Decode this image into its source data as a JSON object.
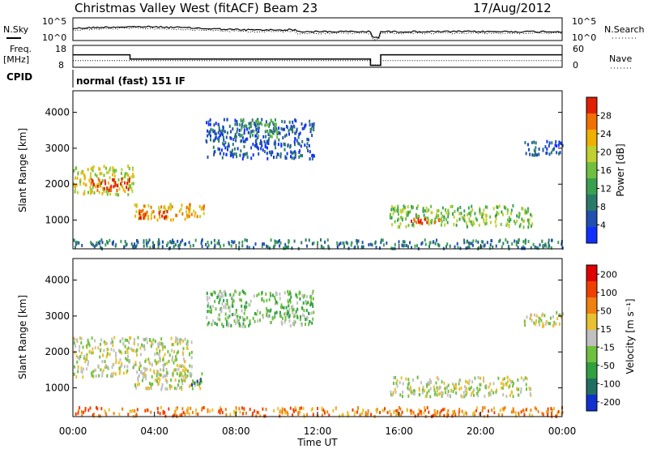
{
  "header": {
    "title": "Christmas Valley West (fitACF)",
    "beam": "Beam 23",
    "date": "17/Aug/2012",
    "cpid_label": "CPID",
    "mode": "normal (fast) 151 IF"
  },
  "noise_panel": {
    "left_label": "N.Sky",
    "right_label": "N.Search",
    "left_ticks": [
      "10^5",
      "10^0"
    ],
    "right_ticks": [
      "10^5",
      "10^0"
    ]
  },
  "freq_panel": {
    "left_label_top": "Freq.",
    "left_label_bottom": "[MHz]",
    "right_label": "Nave",
    "left_ticks": [
      "18",
      "8"
    ],
    "right_ticks": [
      "60",
      "0"
    ],
    "series": [
      {
        "kind": "freq",
        "x": [
          0.0,
          2.8,
          2.8,
          14.6,
          14.6,
          15.1,
          15.1,
          24.0
        ],
        "y": [
          14.0,
          14.0,
          11.8,
          11.8,
          8.6,
          8.6,
          14.0,
          14.0
        ]
      },
      {
        "kind": "nave",
        "x": [
          0.0,
          2.8,
          2.8,
          14.6,
          14.6,
          15.1,
          15.1,
          24.0
        ],
        "y": [
          18,
          18,
          18,
          18,
          5,
          5,
          18,
          18
        ]
      }
    ]
  },
  "time_axis": {
    "label": "Time UT",
    "ticks": [
      "00:00",
      "04:00",
      "08:00",
      "12:00",
      "16:00",
      "20:00",
      "00:00"
    ]
  },
  "chart_data": [
    {
      "type": "heatmap",
      "name": "power",
      "ylabel": "Slant Range [km]",
      "yticks": [
        "1000",
        "2000",
        "3000",
        "4000"
      ],
      "ylim": [
        200,
        4600
      ],
      "xlim": [
        0,
        24
      ],
      "colorbar": {
        "label": "Power [dB]",
        "ticks": [
          "4",
          "8",
          "12",
          "16",
          "20",
          "24",
          "28"
        ],
        "colors": [
          "#1030ff",
          "#2050b0",
          "#2a7a6a",
          "#3aa050",
          "#70c040",
          "#c0d030",
          "#f0b000",
          "#f07000",
          "#e02000"
        ]
      },
      "features": [
        {
          "t0": 0.0,
          "t1": 3.0,
          "r0": 1700,
          "r1": 2500,
          "level": 5
        },
        {
          "t0": 0.8,
          "t1": 2.8,
          "r0": 1800,
          "r1": 2150,
          "level": 8
        },
        {
          "t0": 3.0,
          "t1": 5.8,
          "r0": 1000,
          "r1": 1450,
          "level": 6
        },
        {
          "t0": 3.2,
          "t1": 4.8,
          "r0": 1050,
          "r1": 1250,
          "level": 8
        },
        {
          "t0": 5.5,
          "t1": 6.4,
          "r0": 1050,
          "r1": 1400,
          "level": 6
        },
        {
          "t0": 6.5,
          "t1": 11.8,
          "r0": 2700,
          "r1": 3800,
          "level": 1
        },
        {
          "t0": 8.0,
          "t1": 10.0,
          "r0": 3300,
          "r1": 3800,
          "level": 3
        },
        {
          "t0": 15.5,
          "t1": 22.5,
          "r0": 800,
          "r1": 1400,
          "level": 4
        },
        {
          "t0": 16.5,
          "t1": 18.0,
          "r0": 900,
          "r1": 1100,
          "level": 8
        },
        {
          "t0": 22.0,
          "t1": 24.0,
          "r0": 2800,
          "r1": 3200,
          "level": 1
        },
        {
          "t0": 0.0,
          "t1": 24.0,
          "r0": 200,
          "r1": 450,
          "level": 2
        }
      ]
    },
    {
      "type": "heatmap",
      "name": "velocity",
      "ylabel": "Slant Range [km]",
      "yticks": [
        "1000",
        "2000",
        "3000",
        "4000"
      ],
      "ylim": [
        200,
        4600
      ],
      "xlim": [
        0,
        24
      ],
      "colorbar": {
        "label": "Velocity [m s⁻¹]",
        "ticks": [
          "200",
          "100",
          "50",
          "15",
          "-15",
          "-50",
          "-100",
          "-200"
        ],
        "colors": [
          "#1030d0",
          "#207060",
          "#30a040",
          "#70c040",
          "#c0c0c0",
          "#e8c030",
          "#f08010",
          "#f04000",
          "#e00000"
        ]
      },
      "features": [
        {
          "t0": 0.0,
          "t1": 5.8,
          "r0": 1300,
          "r1": 2400,
          "level": 4
        },
        {
          "t0": 3.0,
          "t1": 6.3,
          "r0": 950,
          "r1": 1400,
          "level": 4
        },
        {
          "t0": 5.8,
          "t1": 6.3,
          "r0": 1000,
          "r1": 1250,
          "level": 1
        },
        {
          "t0": 6.5,
          "t1": 11.8,
          "r0": 2700,
          "r1": 3700,
          "level": 3
        },
        {
          "t0": 15.5,
          "t1": 22.5,
          "r0": 750,
          "r1": 1300,
          "level": 4
        },
        {
          "t0": 22.0,
          "t1": 24.0,
          "r0": 2700,
          "r1": 3100,
          "level": 4
        },
        {
          "t0": 0.0,
          "t1": 24.0,
          "r0": 200,
          "r1": 450,
          "level": 6
        }
      ]
    }
  ]
}
